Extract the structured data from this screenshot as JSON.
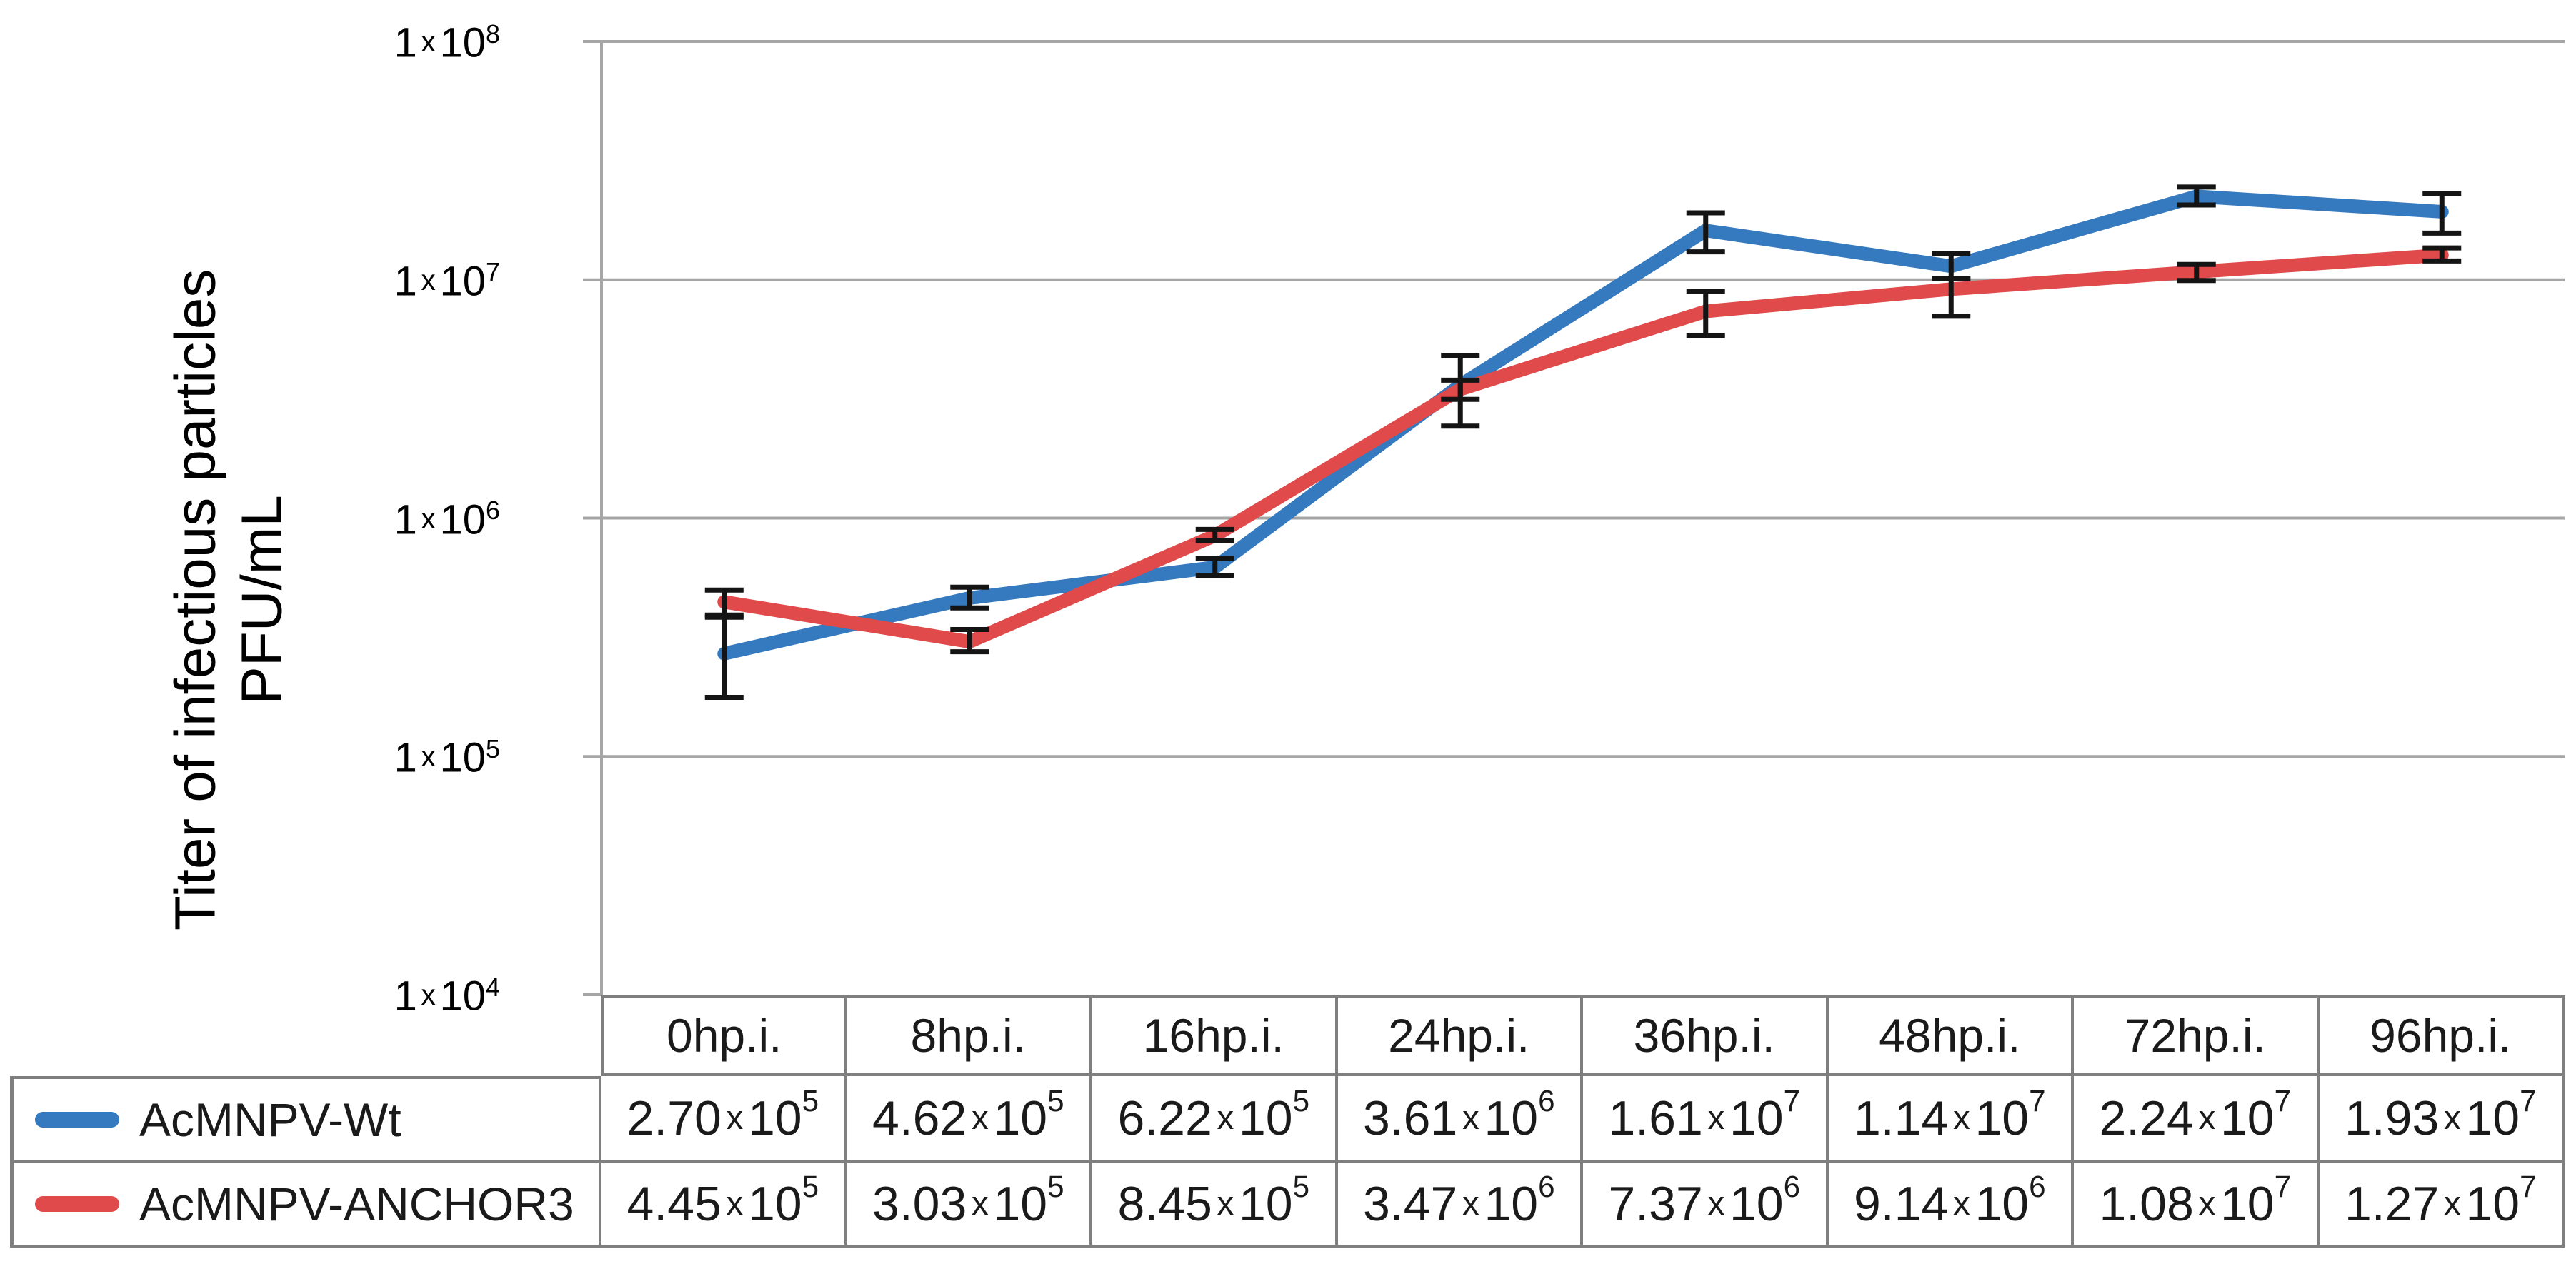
{
  "figure": {
    "ylabel_lines": [
      "Titer of infectious particles",
      "PFU/mL"
    ]
  },
  "styles": {
    "grid_color": "#a6a6a6",
    "axis_color": "#a6a6a6",
    "error_bar_color": "#141414",
    "table_border_color": "#7f7f7f",
    "series_blue": "#3579BF",
    "series_red": "#E04A4A"
  },
  "chart_data": {
    "type": "line",
    "title": "",
    "xlabel": "",
    "ylabel": "Titer of infectious particles PFU/mL",
    "y_scale": "log",
    "ylim": [
      10000,
      100000000
    ],
    "grid": true,
    "legend_position": "table-left",
    "multiply_symbol": "x",
    "y_ticks": [
      {
        "mantissa": "1",
        "exp": "8",
        "value": 100000000
      },
      {
        "mantissa": "1",
        "exp": "7",
        "value": 10000000
      },
      {
        "mantissa": "1",
        "exp": "6",
        "value": 1000000
      },
      {
        "mantissa": "1",
        "exp": "5",
        "value": 100000
      },
      {
        "mantissa": "1",
        "exp": "4",
        "value": 10000
      }
    ],
    "categories": [
      "0hp.i.",
      "8hp.i.",
      "16hp.i.",
      "24hp.i.",
      "36hp.i.",
      "48hp.i.",
      "72hp.i.",
      "96hp.i."
    ],
    "series": [
      {
        "name": "AcMNPV-Wt",
        "color": "#3579BF",
        "points": [
          {
            "value": 270000,
            "mantissa": "2.70",
            "exp": "5",
            "err_lo": 177000,
            "err_hi": 384000
          },
          {
            "value": 462000,
            "mantissa": "4.62",
            "exp": "5",
            "err_lo": 420000,
            "err_hi": 513000
          },
          {
            "value": 622000,
            "mantissa": "6.22",
            "exp": "5",
            "err_lo": 576000,
            "err_hi": 675000
          },
          {
            "value": 3610000,
            "mantissa": "3.61",
            "exp": "6",
            "err_lo": 2430000,
            "err_hi": 4820000
          },
          {
            "value": 16100000,
            "mantissa": "1.61",
            "exp": "7",
            "err_lo": 13100000,
            "err_hi": 19100000
          },
          {
            "value": 11400000,
            "mantissa": "1.14",
            "exp": "7",
            "err_lo": 10100000,
            "err_hi": 12900000
          },
          {
            "value": 22400000,
            "mantissa": "2.24",
            "exp": "7",
            "err_lo": 20600000,
            "err_hi": 24500000
          },
          {
            "value": 19300000,
            "mantissa": "1.93",
            "exp": "7",
            "err_lo": 15700000,
            "err_hi": 23000000
          }
        ]
      },
      {
        "name": "AcMNPV-ANCHOR3",
        "color": "#E04A4A",
        "points": [
          {
            "value": 445000,
            "mantissa": "4.45",
            "exp": "5",
            "err_lo": 392000,
            "err_hi": 499000
          },
          {
            "value": 303000,
            "mantissa": "3.03",
            "exp": "5",
            "err_lo": 275000,
            "err_hi": 341000
          },
          {
            "value": 845000,
            "mantissa": "8.45",
            "exp": "5",
            "err_lo": 807000,
            "err_hi": 896000
          },
          {
            "value": 3470000,
            "mantissa": "3.47",
            "exp": "6",
            "err_lo": 3150000,
            "err_hi": 3790000
          },
          {
            "value": 7370000,
            "mantissa": "7.37",
            "exp": "6",
            "err_lo": 5830000,
            "err_hi": 8950000
          },
          {
            "value": 9140000,
            "mantissa": "9.14",
            "exp": "6",
            "err_lo": 7030000,
            "err_hi": 10100000
          },
          {
            "value": 10800000,
            "mantissa": "1.08",
            "exp": "7",
            "err_lo": 9930000,
            "err_hi": 11600000
          },
          {
            "value": 12700000,
            "mantissa": "1.27",
            "exp": "7",
            "err_lo": 12000000,
            "err_hi": 13600000
          }
        ]
      }
    ]
  }
}
